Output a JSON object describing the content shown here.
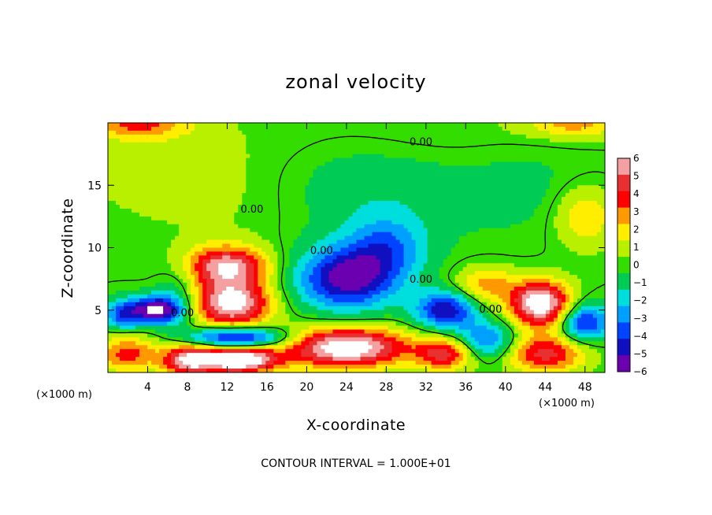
{
  "chart_data": {
    "type": "heatmap",
    "title": "zonal velocity",
    "xlabel": "X-coordinate",
    "ylabel": "Z-coordinate",
    "x_unit_left": "(×1000 m)",
    "x_unit_right": "(×1000 m)",
    "xlim": [
      0,
      50
    ],
    "ylim": [
      0,
      20
    ],
    "x_ticks": [
      4,
      8,
      12,
      16,
      20,
      24,
      28,
      32,
      36,
      40,
      44,
      48
    ],
    "y_ticks": [
      5,
      10,
      15
    ],
    "grid": false,
    "legend": "right",
    "colorbar": {
      "values": [
        6,
        5,
        4,
        3,
        2,
        1,
        0,
        -1,
        -2,
        -3,
        -4,
        -5,
        -6
      ],
      "colors": [
        "#f4a0a0",
        "#e83030",
        "#ff0000",
        "#ff9900",
        "#ffee00",
        "#b8f000",
        "#33dd00",
        "#00cc55",
        "#00dddd",
        "#00a0ff",
        "#0044ff",
        "#1010c0",
        "#6a00b0"
      ]
    },
    "contour_labels": [
      {
        "text": "0.00",
        "x": 31.5,
        "y": 18.2
      },
      {
        "text": "0.00",
        "x": 14.5,
        "y": 12.8
      },
      {
        "text": "0.00",
        "x": 21.5,
        "y": 9.5
      },
      {
        "text": "0.00",
        "x": 31.5,
        "y": 7.2
      },
      {
        "text": "0.00",
        "x": 38.5,
        "y": 4.8
      },
      {
        "text": "0.00",
        "x": 7.5,
        "y": 4.5
      }
    ],
    "fields": [
      {
        "x": 4,
        "y": 17,
        "sx": 9,
        "sy": 5,
        "v": 0.8
      },
      {
        "x": 14,
        "y": 14,
        "sx": 9,
        "sy": 5,
        "v": 0.6
      },
      {
        "x": 30,
        "y": 19,
        "sx": 14,
        "sy": 3,
        "v": 0.8
      },
      {
        "x": 26,
        "y": 15,
        "sx": 10,
        "sy": 5,
        "v": -1.4
      },
      {
        "x": 42,
        "y": 15,
        "sx": 8,
        "sy": 4,
        "v": -0.8
      },
      {
        "x": 48,
        "y": 12.5,
        "sx": 3,
        "sy": 2.5,
        "v": 2.6
      },
      {
        "x": 3,
        "y": 20,
        "sx": 5,
        "sy": 1.2,
        "v": 3.5
      },
      {
        "x": 47,
        "y": 20,
        "sx": 5,
        "sy": 1.2,
        "v": 3
      },
      {
        "x": 12,
        "y": 8.5,
        "sx": 4,
        "sy": 1.6,
        "v": 6.5
      },
      {
        "x": 12.5,
        "y": 5.5,
        "sx": 3.8,
        "sy": 1.8,
        "v": 7.5
      },
      {
        "x": 7,
        "y": 6.5,
        "sx": 2,
        "sy": 2,
        "v": -1.5
      },
      {
        "x": 5,
        "y": 5,
        "sx": 2.6,
        "sy": 1.1,
        "v": -7
      },
      {
        "x": 1.5,
        "y": 4.6,
        "sx": 2,
        "sy": 1.2,
        "v": -4
      },
      {
        "x": 24,
        "y": 7.5,
        "sx": 5,
        "sy": 2.5,
        "v": -6
      },
      {
        "x": 28,
        "y": 10,
        "sx": 4,
        "sy": 2.5,
        "v": -3
      },
      {
        "x": 34,
        "y": 5,
        "sx": 3,
        "sy": 1.5,
        "v": -5.5
      },
      {
        "x": 38,
        "y": 7,
        "sx": 3,
        "sy": 1.5,
        "v": 3
      },
      {
        "x": 43.5,
        "y": 5.5,
        "sx": 3,
        "sy": 1.8,
        "v": 8
      },
      {
        "x": 48,
        "y": 4,
        "sx": 2.5,
        "sy": 1.5,
        "v": -5
      },
      {
        "x": 8,
        "y": 1,
        "sx": 2.5,
        "sy": 1.2,
        "v": 6
      },
      {
        "x": 13,
        "y": 1,
        "sx": 4,
        "sy": 1,
        "v": 9
      },
      {
        "x": 13,
        "y": 2.8,
        "sx": 5,
        "sy": 0.8,
        "v": -6
      },
      {
        "x": 24,
        "y": 2,
        "sx": 6,
        "sy": 1.6,
        "v": 8
      },
      {
        "x": 34,
        "y": 1.5,
        "sx": 3,
        "sy": 1.3,
        "v": 5
      },
      {
        "x": 44,
        "y": 1.5,
        "sx": 4,
        "sy": 1.5,
        "v": 5
      },
      {
        "x": 2,
        "y": 1.5,
        "sx": 3,
        "sy": 1.5,
        "v": 4
      },
      {
        "x": 38,
        "y": 2.5,
        "sx": 3,
        "sy": 1.5,
        "v": -4
      }
    ]
  }
}
